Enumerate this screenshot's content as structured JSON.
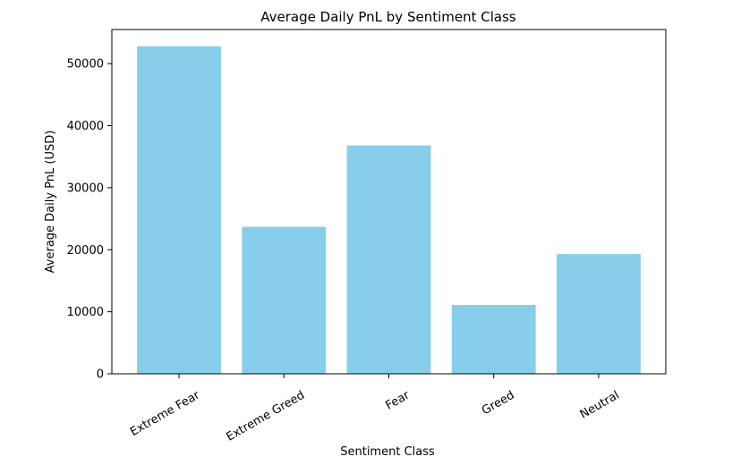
{
  "chart_data": {
    "type": "bar",
    "title": "Average Daily PnL by Sentiment Class",
    "xlabel": "Sentiment Class",
    "ylabel": "Average Daily PnL (USD)",
    "categories": [
      "Extreme Fear",
      "Extreme Greed",
      "Fear",
      "Greed",
      "Neutral"
    ],
    "values": [
      52800,
      23700,
      36800,
      11100,
      19300
    ],
    "ylim": [
      0,
      55500
    ],
    "yticks": [
      0,
      10000,
      20000,
      30000,
      40000,
      50000
    ],
    "bar_color": "#87ceeb",
    "grid": false,
    "legend": "none"
  }
}
